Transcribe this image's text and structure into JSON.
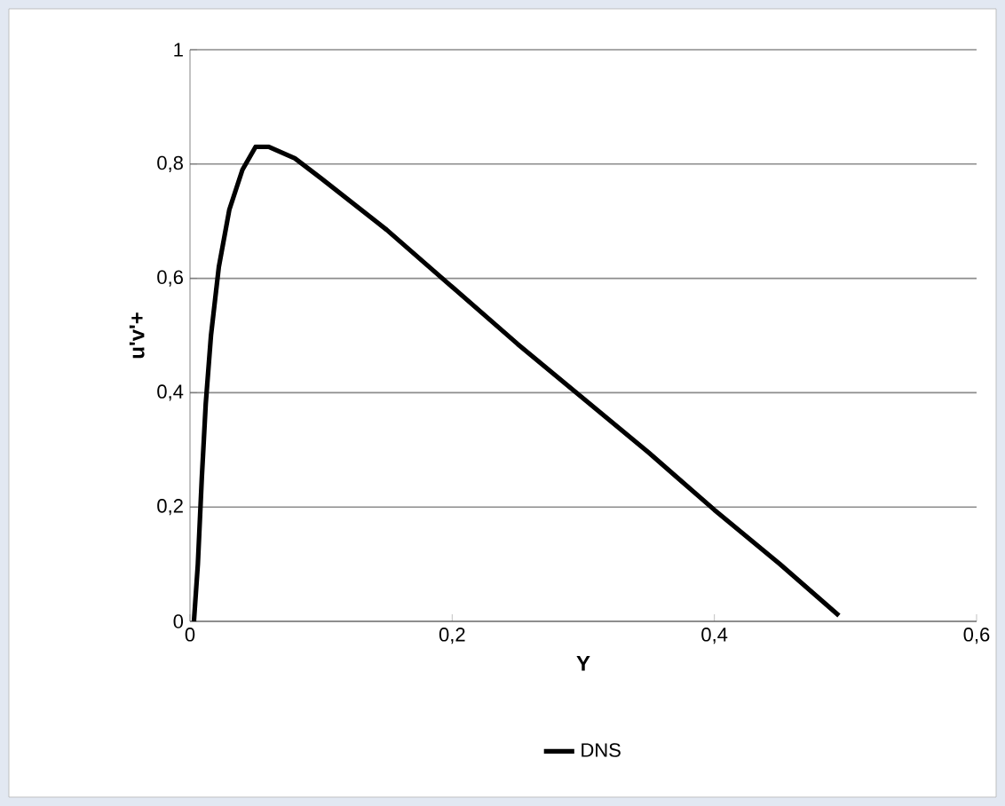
{
  "chart_data": {
    "type": "line",
    "xlabel": "Y",
    "ylabel": "u'v'+",
    "x": [
      0.003,
      0.006,
      0.009,
      0.012,
      0.016,
      0.022,
      0.03,
      0.04,
      0.05,
      0.06,
      0.08,
      0.1,
      0.15,
      0.2,
      0.25,
      0.3,
      0.35,
      0.4,
      0.45,
      0.495
    ],
    "series": [
      {
        "name": "DNS",
        "color": "#000000",
        "values": [
          0,
          0.1,
          0.25,
          0.38,
          0.5,
          0.62,
          0.72,
          0.79,
          0.83,
          0.83,
          0.81,
          0.775,
          0.685,
          0.585,
          0.485,
          0.39,
          0.295,
          0.195,
          0.1,
          0.01
        ]
      }
    ],
    "xlim": [
      0,
      0.6
    ],
    "ylim": [
      0,
      1
    ],
    "xticks": [
      0,
      {
        "value": 0.2,
        "label": "0,2"
      },
      {
        "value": 0.4,
        "label": "0,4"
      },
      {
        "value": 0.6,
        "label": "0,6"
      }
    ],
    "yticks": [
      0,
      {
        "value": 0.2,
        "label": "0,2"
      },
      {
        "value": 0.4,
        "label": "0,4"
      },
      {
        "value": 0.6,
        "label": "0,6"
      },
      {
        "value": 0.8,
        "label": "0,8"
      },
      1
    ],
    "grid": "y",
    "legend": "bottom",
    "marker": "none",
    "line_style": "solid"
  }
}
